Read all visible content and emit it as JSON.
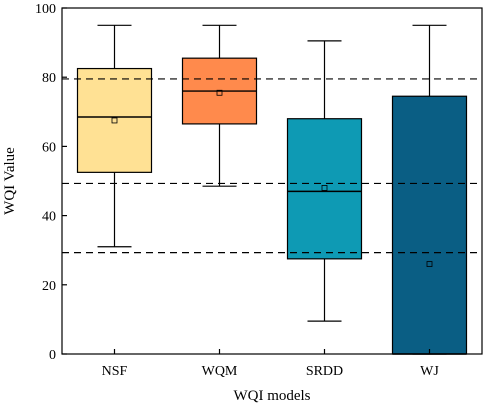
{
  "chart_data": {
    "type": "box",
    "xlabel": "WQI models",
    "ylabel": "WQI Value",
    "ylim": [
      0,
      100
    ],
    "yticks": [
      0,
      20,
      40,
      60,
      80,
      100
    ],
    "categories": [
      "NSF",
      "WQM",
      "SRDD",
      "WJ"
    ],
    "boxes": [
      {
        "name": "NSF",
        "min": 31,
        "q1": 52.5,
        "median": 68.5,
        "q3": 82.5,
        "max": 95,
        "mean": 67.5,
        "color": "#FFE194"
      },
      {
        "name": "WQM",
        "min": 48.5,
        "q1": 66.5,
        "median": 76,
        "q3": 85.5,
        "max": 95,
        "mean": 75.5,
        "color": "#FF8A4C"
      },
      {
        "name": "SRDD",
        "min": 9.5,
        "q1": 27.5,
        "median": 47,
        "q3": 68,
        "max": 90.5,
        "mean": 48,
        "color": "#0E9AB4"
      },
      {
        "name": "WJ",
        "min": 0,
        "q1": 0,
        "median": 0,
        "q3": 74.5,
        "max": 95,
        "mean": 26,
        "color": "#0A5E84"
      }
    ],
    "reference_lines": [
      79.5,
      49.3,
      29.3
    ],
    "grid": false,
    "legend": "none"
  }
}
